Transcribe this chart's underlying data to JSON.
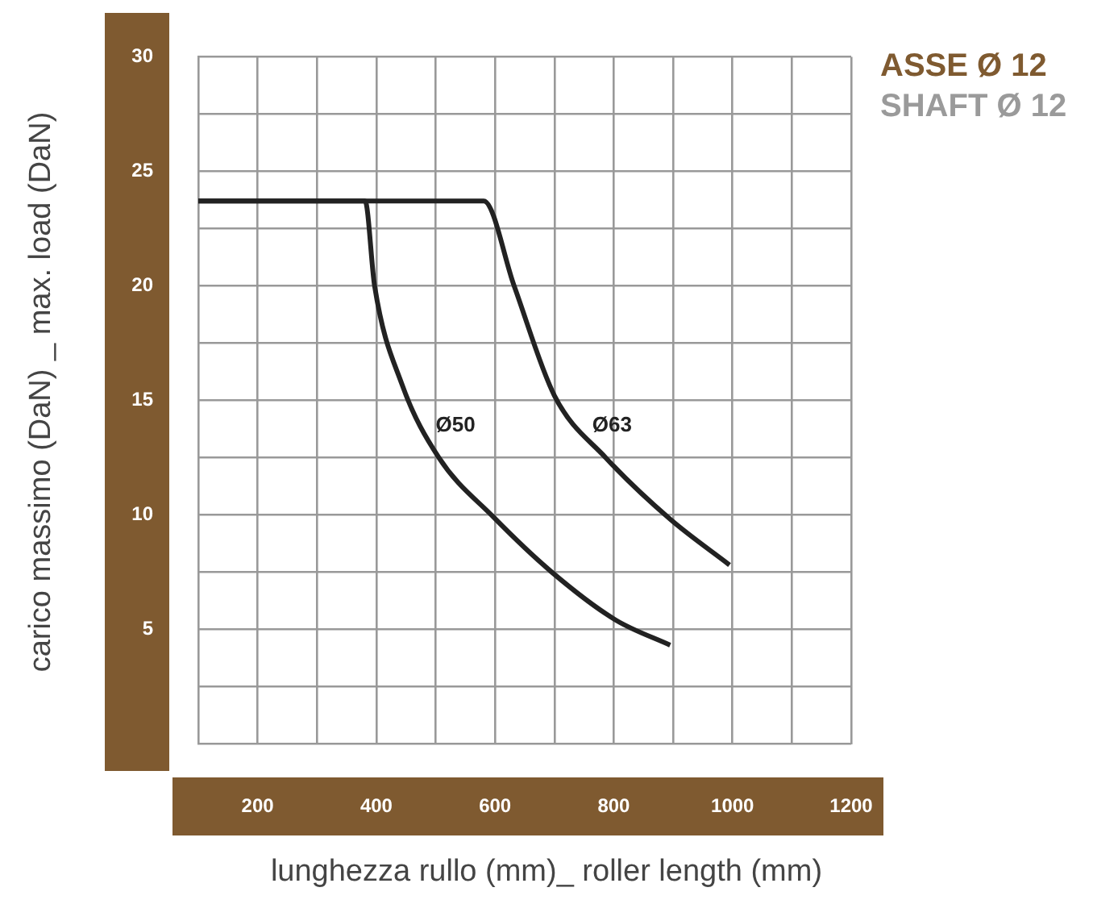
{
  "chart_data": {
    "type": "line",
    "title": "ASSE Ø 12",
    "subtitle": "SHAFT Ø 12",
    "xlabel": "lunghezza rullo (mm)_ roller length (mm)",
    "ylabel": "carico massimo (DaN) _ max. load (DaN)",
    "xlim": [
      100,
      1200
    ],
    "ylim": [
      0,
      30
    ],
    "xticks": [
      {
        "value": 100,
        "label": null
      },
      200,
      {
        "value": 300,
        "label": null
      },
      400,
      {
        "value": 500,
        "label": null
      },
      600,
      {
        "value": 700,
        "label": null
      },
      800,
      {
        "value": 900,
        "label": null
      },
      1000,
      {
        "value": 1100,
        "label": null
      },
      1200
    ],
    "yticks": [
      {
        "value": 0,
        "label": null
      },
      {
        "value": 2.5,
        "label": null
      },
      5,
      {
        "value": 7.5,
        "label": null
      },
      10,
      {
        "value": 12.5,
        "label": null
      },
      15,
      {
        "value": 17.5,
        "label": null
      },
      20,
      {
        "value": 22.5,
        "label": null
      },
      25,
      {
        "value": 27.5,
        "label": null
      },
      30
    ],
    "grid": true,
    "legend": false,
    "marker": "none",
    "line_style": "solid",
    "series": [
      {
        "color": "#222222",
        "x": [
          100,
          381,
          397,
          443,
          505,
          597,
          695,
          803,
          895
        ],
        "values": [
          23.7,
          23.7,
          20.0,
          15.7,
          12.5,
          9.9,
          7.5,
          5.4,
          4.3
        ]
      },
      {
        "color": "#222222",
        "x": [
          100,
          581,
          632,
          700,
          786,
          895,
          995
        ],
        "values": [
          23.7,
          23.7,
          20.0,
          15.2,
          12.5,
          9.8,
          7.8
        ]
      }
    ],
    "annotations": [
      "Ø50",
      "Ø63"
    ]
  }
}
